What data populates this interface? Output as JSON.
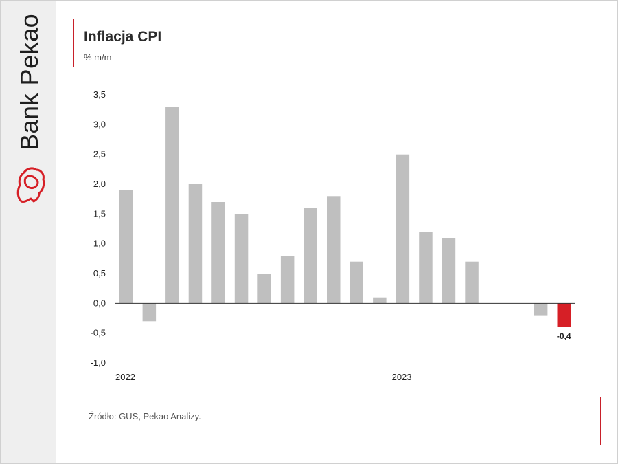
{
  "brand": {
    "name": "Bank Pekao"
  },
  "header": {
    "title": "Inflacja CPI",
    "subtitle": "% m/m"
  },
  "footer": {
    "source": "Źródło: GUS, Pekao Analizy."
  },
  "colors": {
    "bar": "#bfbfbf",
    "highlight": "#d61f26",
    "accent": "#c8202a",
    "axis": "#333333"
  },
  "chart_data": {
    "type": "bar",
    "title": "Inflacja CPI",
    "ylabel": "% m/m",
    "xlabel": "",
    "ylim": [
      -1.0,
      3.5
    ],
    "yticks": [
      -1.0,
      -0.5,
      0.0,
      0.5,
      1.0,
      1.5,
      2.0,
      2.5,
      3.0,
      3.5
    ],
    "ytick_labels": [
      "-1,0",
      "-0,5",
      "0,0",
      "0,5",
      "1,0",
      "1,5",
      "2,0",
      "2,5",
      "3,0",
      "3,5"
    ],
    "x_labels": [
      {
        "index": 0,
        "text": "2022"
      },
      {
        "index": 12,
        "text": "2023"
      }
    ],
    "values": [
      1.9,
      -0.3,
      3.3,
      2.0,
      1.7,
      1.5,
      0.5,
      0.8,
      1.6,
      1.8,
      0.7,
      0.1,
      2.5,
      1.2,
      1.1,
      0.7,
      0.0,
      0.0,
      -0.2,
      -0.4
    ],
    "highlight_index": 19,
    "data_labels": [
      {
        "index": 19,
        "text": "-0,4"
      }
    ],
    "grid": false,
    "legend": "none"
  }
}
